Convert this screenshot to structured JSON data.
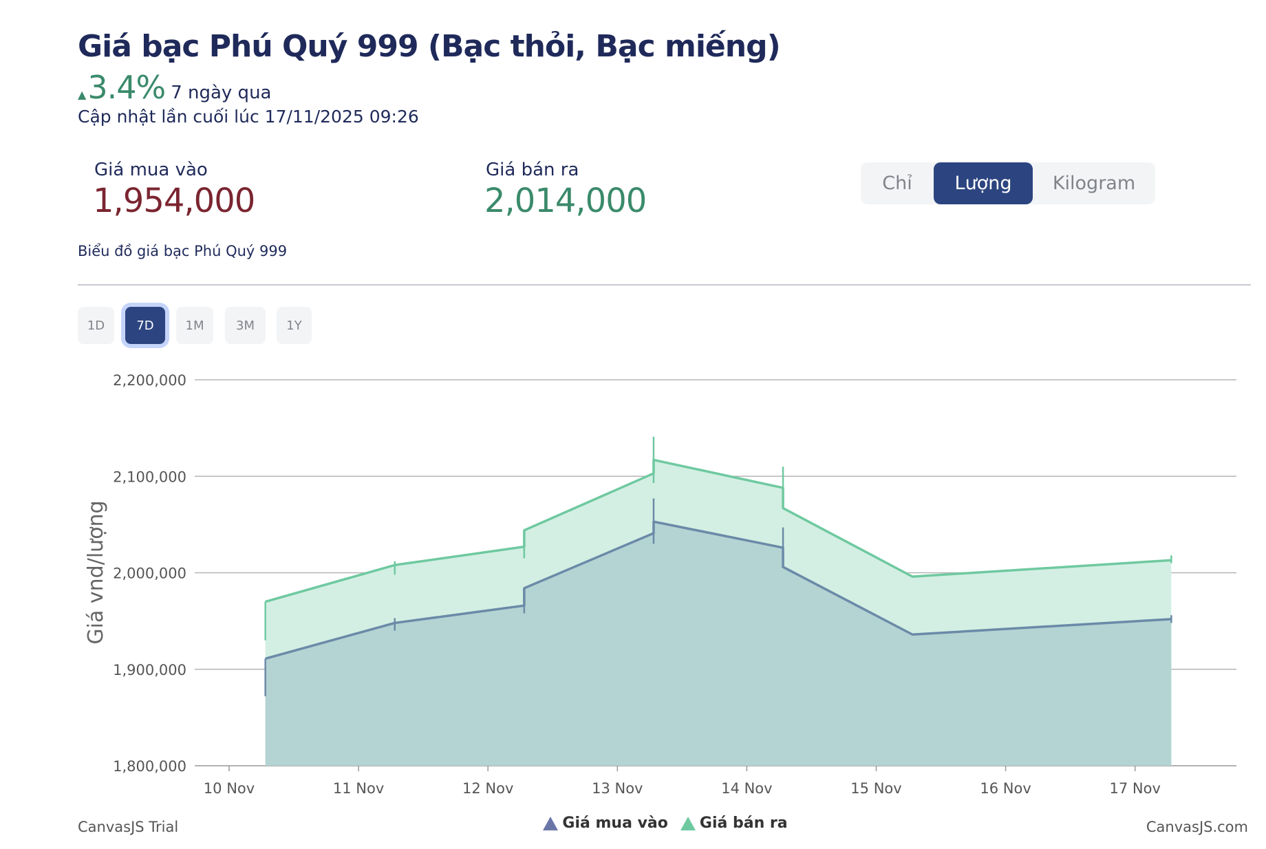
{
  "header": {
    "title": "Giá bạc Phú Quý 999 (Bạc thỏi, Bạc miếng)",
    "change": "3.4%",
    "change_direction": "up",
    "change_period": "7 ngày qua",
    "updated": "Cập nhật lần cuối lúc 17/11/2025 09:26"
  },
  "prices": {
    "buy_label": "Giá mua vào",
    "buy_value": "1,954,000",
    "sell_label": "Giá bán ra",
    "sell_value": "2,014,000"
  },
  "units": [
    {
      "label": "Chỉ",
      "active": false
    },
    {
      "label": "Lượng",
      "active": true
    },
    {
      "label": "Kilogram",
      "active": false
    }
  ],
  "subtitle": "Biểu đồ giá bạc Phú Quý 999",
  "ranges": [
    {
      "label": "1D",
      "active": false
    },
    {
      "label": "7D",
      "active": true
    },
    {
      "label": "1M",
      "active": false
    },
    {
      "label": "3M",
      "active": false
    },
    {
      "label": "1Y",
      "active": false
    }
  ],
  "footer": {
    "left": "CanvasJS Trial",
    "right": "CanvasJS.com"
  },
  "colors": {
    "buy_line": "#6b8aa8",
    "buy_fill": "#b4d3d3",
    "sell_line": "#6fc9a0",
    "sell_fill": "#d3efe3",
    "grid": "#b5b5b5"
  },
  "chart_data": {
    "type": "area",
    "title": "",
    "xlabel": "",
    "ylabel": "Giá vnd/lượng",
    "ylim": [
      1800000,
      2200000
    ],
    "yticks": [
      "1,800,000",
      "1,900,000",
      "2,000,000",
      "2,100,000",
      "2,200,000"
    ],
    "ytick_values": [
      1800000,
      1900000,
      2000000,
      2100000,
      2200000
    ],
    "xticks": [
      "10 Nov",
      "11 Nov",
      "12 Nov",
      "13 Nov",
      "14 Nov",
      "15 Nov",
      "16 Nov",
      "17 Nov"
    ],
    "grid": true,
    "legend": "bottom-center",
    "series": [
      {
        "name": "Giá bán ra",
        "points": [
          {
            "day": 0.28,
            "from": 1970000,
            "to": 1970000,
            "range": [
              1930000,
              1970000
            ]
          },
          {
            "day": 1.28,
            "from": 2008000,
            "to": 2008000,
            "range": [
              1998000,
              2012000
            ]
          },
          {
            "day": 2.28,
            "from": 2027000,
            "to": 2044000,
            "range": [
              2015000,
              2044000
            ]
          },
          {
            "day": 3.28,
            "from": 2103000,
            "to": 2117000,
            "range": [
              2093000,
              2141000
            ]
          },
          {
            "day": 4.28,
            "from": 2088000,
            "to": 2067000,
            "range": [
              2067000,
              2110000
            ]
          },
          {
            "day": 5.28,
            "from": 1996000,
            "to": 1996000,
            "range": null
          },
          {
            "day": 7.28,
            "from": 2013000,
            "to": 2013000,
            "range": [
              2010000,
              2018000
            ]
          }
        ]
      },
      {
        "name": "Giá mua vào",
        "points": [
          {
            "day": 0.28,
            "from": 1911000,
            "to": 1911000,
            "range": [
              1872000,
              1911000
            ]
          },
          {
            "day": 1.28,
            "from": 1948000,
            "to": 1948000,
            "range": [
              1940000,
              1953000
            ]
          },
          {
            "day": 2.28,
            "from": 1966000,
            "to": 1984000,
            "range": [
              1958000,
              1984000
            ]
          },
          {
            "day": 3.28,
            "from": 2041000,
            "to": 2053000,
            "range": [
              2030000,
              2077000
            ]
          },
          {
            "day": 4.28,
            "from": 2026000,
            "to": 2006000,
            "range": [
              2006000,
              2047000
            ]
          },
          {
            "day": 5.28,
            "from": 1936000,
            "to": 1936000,
            "range": null
          },
          {
            "day": 7.28,
            "from": 1952000,
            "to": 1952000,
            "range": [
              1948000,
              1956000
            ]
          }
        ]
      }
    ],
    "legend_entries": [
      "Giá mua vào",
      "Giá bán ra"
    ]
  }
}
